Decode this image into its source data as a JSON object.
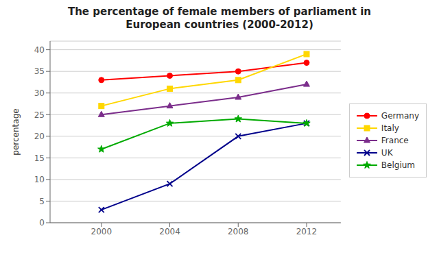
{
  "chart_data": {
    "type": "line",
    "title": "The percentage of female members of parliament in\nEuropean countries (2000-2012)",
    "y_label": "percentage",
    "x": [
      2000,
      2004,
      2008,
      2012
    ],
    "series": [
      {
        "name": "Germany",
        "color": "#FF0000",
        "marker": "circle",
        "values": [
          33,
          34,
          35,
          37
        ]
      },
      {
        "name": "Italy",
        "color": "#FFD700",
        "marker": "square",
        "values": [
          27,
          31,
          33,
          39
        ]
      },
      {
        "name": "France",
        "color": "#7B2D8B",
        "marker": "triangle",
        "values": [
          25,
          27,
          29,
          32
        ]
      },
      {
        "name": "UK",
        "color": "#00008B",
        "marker": "x",
        "values": [
          3,
          9,
          20,
          23
        ]
      },
      {
        "name": "Belgium",
        "color": "#00AA00",
        "marker": "star",
        "values": [
          17,
          23,
          24,
          23
        ]
      }
    ],
    "xlim": [
      1997,
      2014
    ],
    "xticks": [
      2000,
      2004,
      2008,
      2012
    ],
    "ylim": [
      0,
      42
    ],
    "yticks": [
      0,
      5,
      10,
      15,
      20,
      25,
      30,
      35,
      40
    ],
    "grid": "y",
    "legend": "right"
  }
}
